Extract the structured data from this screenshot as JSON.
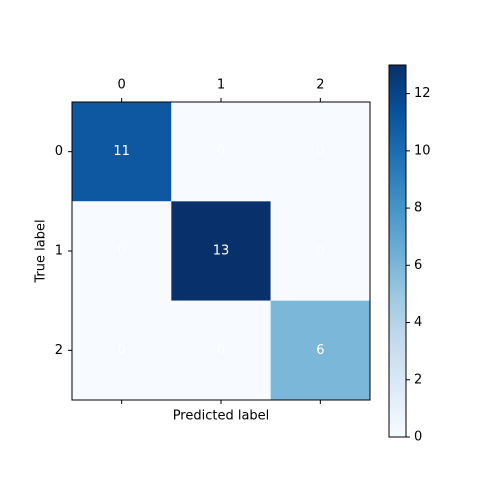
{
  "chart_data": {
    "type": "heatmap",
    "x_categories": [
      "0",
      "1",
      "2"
    ],
    "y_categories": [
      "0",
      "1",
      "2"
    ],
    "values": [
      [
        11,
        0,
        0
      ],
      [
        0,
        13,
        0
      ],
      [
        0,
        0,
        6
      ]
    ],
    "xlabel": "Predicted label",
    "ylabel": "True label",
    "colormap": "Blues",
    "clim": [
      0,
      13
    ],
    "colorbar_ticks": [
      0,
      2,
      4,
      6,
      8,
      10,
      12
    ],
    "text_color": "#ffffff"
  }
}
